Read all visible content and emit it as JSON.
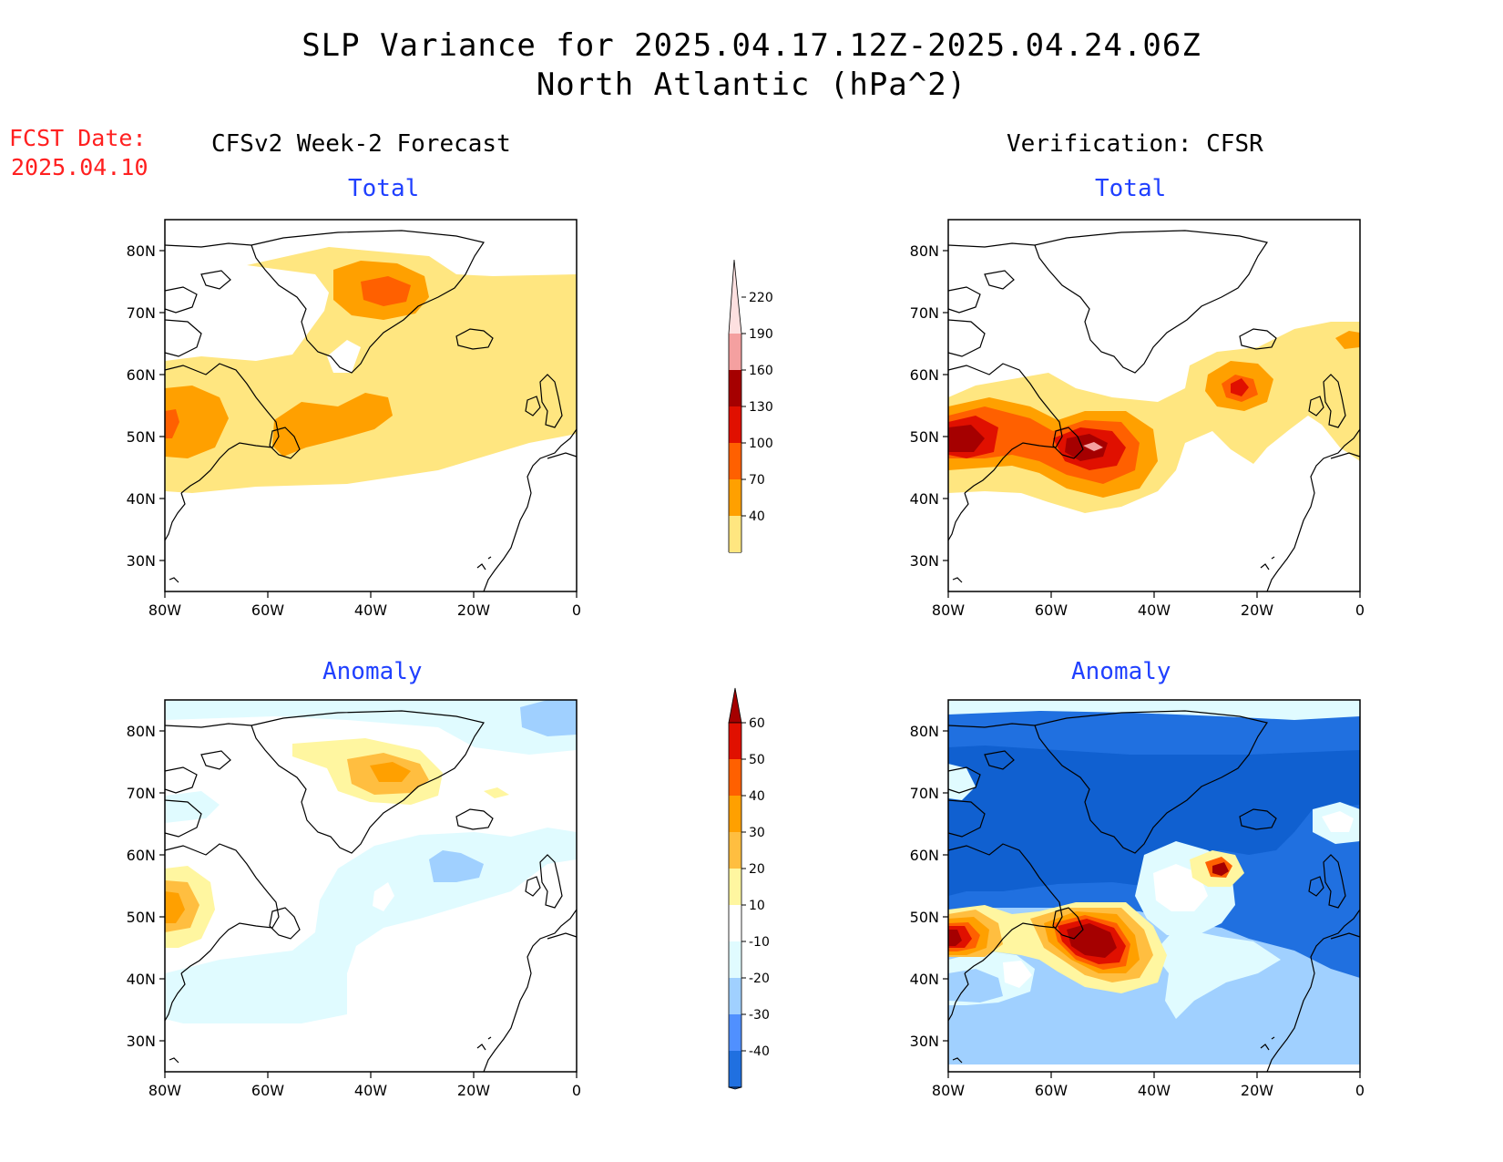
{
  "title": {
    "line1": "SLP Variance for 2025.04.17.12Z-2025.04.24.06Z",
    "line2": "North Atlantic (hPa^2)"
  },
  "fcst_date": {
    "label": "FCST Date:",
    "value": "2025.04.10"
  },
  "columns": {
    "left": "CFSv2 Week-2 Forecast",
    "right": "Verification: CFSR"
  },
  "panel_titles": {
    "forecast_total": "Total",
    "verification_total": "Total",
    "forecast_anomaly": "Anomaly",
    "verification_anomaly": "Anomaly"
  },
  "axes": {
    "lat_ticks": [
      "80N",
      "70N",
      "60N",
      "50N",
      "40N",
      "30N"
    ],
    "lon_ticks": [
      "80W",
      "60W",
      "40W",
      "20W",
      "0"
    ],
    "lon_range": [
      -80,
      0
    ],
    "lat_range": [
      25,
      85
    ]
  },
  "colorbars": {
    "total": {
      "levels": [
        "40",
        "70",
        "100",
        "130",
        "160",
        "190",
        "220"
      ],
      "colors": [
        "#ffe680",
        "#ffa000",
        "#ff6000",
        "#e01000",
        "#a50000",
        "#f4a0a0",
        "#fde0e0"
      ]
    },
    "anomaly": {
      "levels": [
        "60",
        "50",
        "40",
        "30",
        "20",
        "10",
        "-10",
        "-20",
        "-30",
        "-40"
      ],
      "colors": [
        "#a50000",
        "#e01000",
        "#ff6000",
        "#ffa000",
        "#ffbe40",
        "#fff6a0",
        "#ffffff",
        "#e0fbff",
        "#a0d0ff",
        "#5090ff",
        "#2070e0",
        "#1060d0"
      ]
    },
    "total_colors": {
      "c40": "#ffe680",
      "c70": "#ffa000",
      "c100": "#ff6000",
      "c130": "#e01000",
      "c160": "#a50000",
      "c190": "#f4a0a0",
      "c220": "#fde0e0"
    },
    "anomaly_colors": {
      "n40": "#1060d0",
      "n30": "#2070e0",
      "n20": "#a0d0ff",
      "n10": "#e0fbff",
      "p10": "#fff6a0",
      "p20": "#ffbe40",
      "p30": "#ffa000",
      "p40": "#ff6000",
      "p50": "#e01000",
      "p60": "#a50000"
    }
  }
}
